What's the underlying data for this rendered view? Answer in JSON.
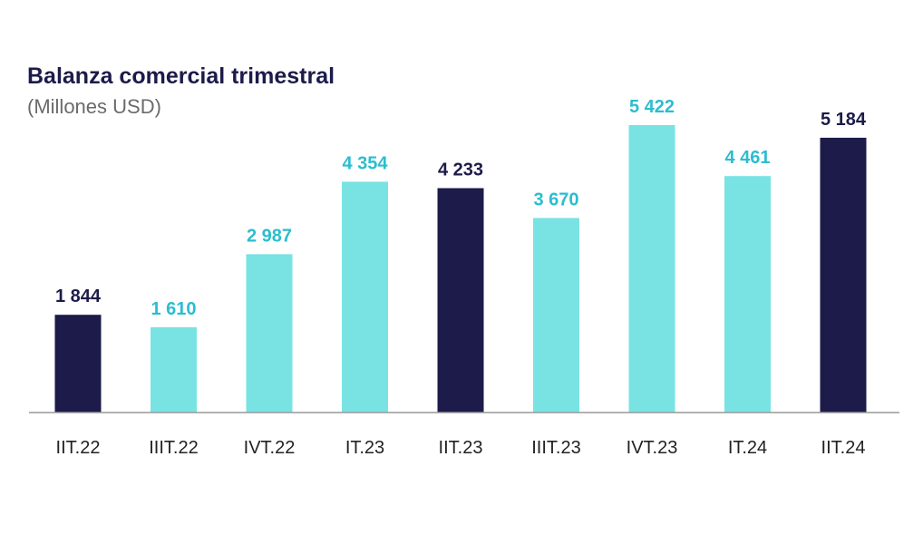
{
  "chart_data": {
    "type": "bar",
    "title": "Balanza comercial trimestral",
    "subtitle": "(Millones USD)",
    "categories": [
      "IIT.22",
      "IIIT.22",
      "IVT.22",
      "IT.23",
      "IIT.23",
      "IIIT.23",
      "IVT.23",
      "IT.24",
      "IIT.24"
    ],
    "values": [
      1844,
      1610,
      2987,
      4354,
      4233,
      3670,
      5422,
      4461,
      5184
    ],
    "value_labels": [
      "1 844",
      "1 610",
      "2 987",
      "4 354",
      "4 233",
      "3 670",
      "5 422",
      "4 461",
      "5 184"
    ],
    "highlight": [
      true,
      false,
      false,
      false,
      true,
      false,
      false,
      false,
      true
    ],
    "ylim": [
      0,
      5422
    ],
    "grid": false,
    "legend": "none"
  },
  "colors": {
    "highlight_bar": "#1c1b4a",
    "bar": "#79e3e3",
    "highlight_label": "#1c1b4a",
    "label": "#2bbdd0",
    "axis": "#999999"
  }
}
